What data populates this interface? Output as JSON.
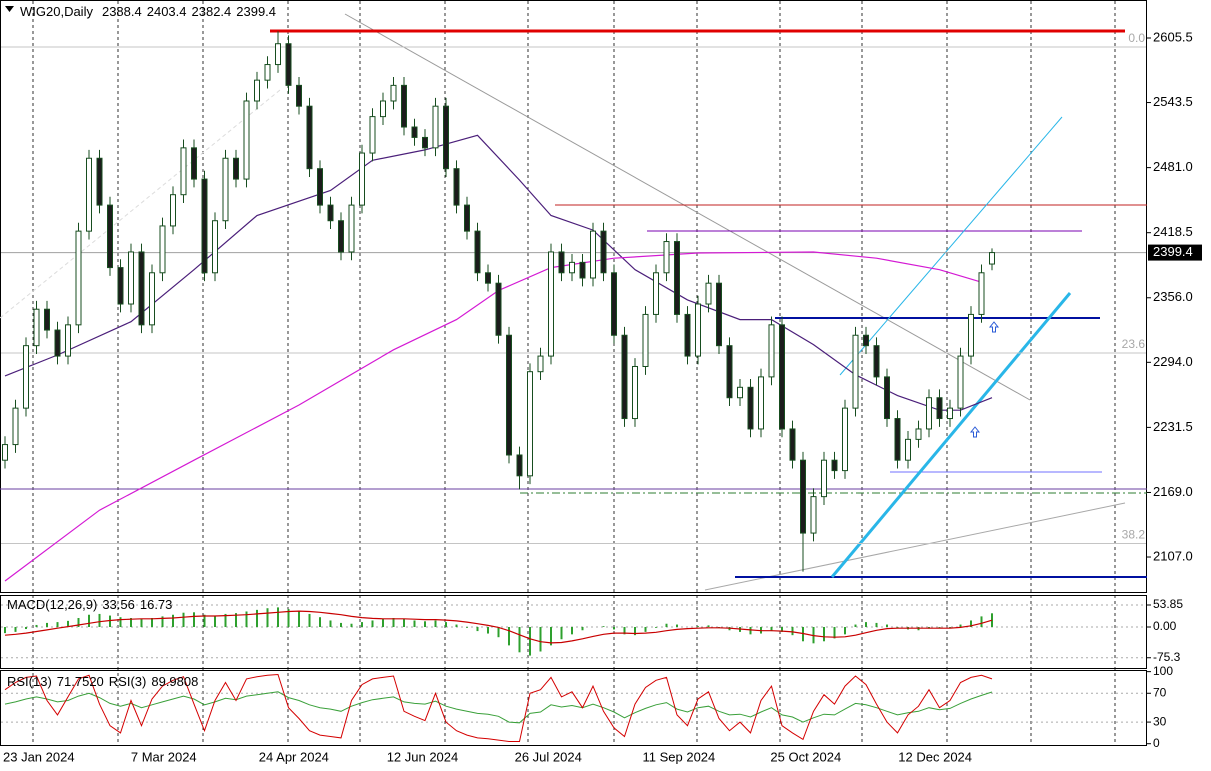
{
  "chart_data": {
    "type": "candlestick",
    "symbol": "WIG20,Daily",
    "color_up": "#ffffff",
    "color_down": "#1c1c1c",
    "wick_color": "#174d1f",
    "open": [
      2200,
      2215,
      2250,
      2310,
      2345,
      2325,
      2300,
      2330,
      2420,
      2490,
      2445,
      2385,
      2350,
      2400,
      2330,
      2380,
      2425,
      2455,
      2500,
      2470,
      2380,
      2430,
      2490,
      2470,
      2545,
      2565,
      2580,
      2600,
      2560,
      2540,
      2480,
      2445,
      2430,
      2400,
      2445,
      2495,
      2530,
      2545,
      2560,
      2520,
      2510,
      2500,
      2540,
      2480,
      2445,
      2420,
      2380,
      2370,
      2320,
      2205,
      2185,
      2285,
      2300,
      2400,
      2380,
      2390,
      2375,
      2420,
      2380,
      2320,
      2240,
      2290,
      2340,
      2380,
      2410,
      2340,
      2300,
      2350,
      2370,
      2310,
      2260,
      2270,
      2230,
      2280,
      2330,
      2230,
      2200,
      2130,
      2165,
      2200,
      2190,
      2250,
      2320,
      2310,
      2280,
      2240,
      2200,
      2220,
      2230,
      2260,
      2240,
      2250,
      2300,
      2340,
      2388.4
    ],
    "high": [
      2223,
      2258,
      2318,
      2353,
      2353,
      2333,
      2338,
      2428,
      2498,
      2498,
      2453,
      2393,
      2408,
      2408,
      2388,
      2433,
      2463,
      2508,
      2508,
      2478,
      2438,
      2498,
      2498,
      2553,
      2573,
      2588,
      2612,
      2608,
      2568,
      2548,
      2488,
      2453,
      2438,
      2453,
      2503,
      2538,
      2553,
      2568,
      2568,
      2528,
      2518,
      2548,
      2548,
      2488,
      2453,
      2428,
      2388,
      2378,
      2328,
      2213,
      2293,
      2308,
      2408,
      2408,
      2398,
      2398,
      2428,
      2428,
      2388,
      2328,
      2298,
      2348,
      2388,
      2418,
      2418,
      2348,
      2358,
      2378,
      2378,
      2318,
      2278,
      2278,
      2288,
      2338,
      2338,
      2238,
      2208,
      2173,
      2208,
      2208,
      2258,
      2328,
      2328,
      2318,
      2288,
      2248,
      2228,
      2238,
      2268,
      2268,
      2258,
      2308,
      2348,
      2388,
      2403.4
    ],
    "low": [
      2192,
      2207,
      2242,
      2302,
      2317,
      2292,
      2292,
      2322,
      2412,
      2437,
      2377,
      2342,
      2342,
      2322,
      2322,
      2372,
      2417,
      2447,
      2462,
      2372,
      2372,
      2422,
      2462,
      2462,
      2537,
      2557,
      2572,
      2552,
      2532,
      2472,
      2437,
      2422,
      2392,
      2392,
      2437,
      2487,
      2522,
      2537,
      2512,
      2502,
      2492,
      2492,
      2472,
      2437,
      2412,
      2372,
      2362,
      2312,
      2197,
      2172,
      2177,
      2277,
      2292,
      2372,
      2372,
      2367,
      2367,
      2372,
      2312,
      2232,
      2232,
      2282,
      2332,
      2372,
      2332,
      2292,
      2292,
      2342,
      2302,
      2252,
      2252,
      2222,
      2222,
      2272,
      2222,
      2192,
      2093,
      2122,
      2157,
      2182,
      2182,
      2242,
      2302,
      2272,
      2232,
      2192,
      2192,
      2212,
      2222,
      2232,
      2232,
      2242,
      2292,
      2332,
      2382.4
    ],
    "close": [
      2215,
      2250,
      2310,
      2345,
      2325,
      2300,
      2330,
      2420,
      2490,
      2445,
      2385,
      2350,
      2400,
      2330,
      2380,
      2425,
      2455,
      2500,
      2470,
      2380,
      2430,
      2490,
      2470,
      2545,
      2565,
      2580,
      2600,
      2560,
      2540,
      2480,
      2445,
      2430,
      2400,
      2445,
      2495,
      2530,
      2545,
      2560,
      2520,
      2510,
      2500,
      2540,
      2480,
      2445,
      2420,
      2380,
      2370,
      2320,
      2205,
      2185,
      2285,
      2300,
      2400,
      2380,
      2390,
      2375,
      2420,
      2380,
      2320,
      2240,
      2290,
      2340,
      2380,
      2410,
      2340,
      2300,
      2350,
      2370,
      2310,
      2260,
      2270,
      2230,
      2280,
      2330,
      2230,
      2200,
      2130,
      2165,
      2200,
      2190,
      2250,
      2320,
      2310,
      2280,
      2240,
      2200,
      2220,
      2230,
      2260,
      2240,
      2250,
      2300,
      2340,
      2380,
      2399.4
    ],
    "ylim": [
      2073.4,
      2642.0
    ],
    "yticks": [
      2605.5,
      2543.5,
      {
        "value": 2481,
        "label": "2481.0"
      },
      2418.5,
      {
        "value": 2356,
        "label": "2356.0"
      },
      {
        "value": 2294,
        "label": "2294.0"
      },
      2231.5,
      {
        "value": 2169,
        "label": "2169.0"
      },
      {
        "value": 2107,
        "label": "2107.0"
      }
    ],
    "x_labels": [
      "23 Jan 2024",
      "7 Mar 2024",
      "24 Apr 2024",
      "12 Jun 2024",
      "26 Jul 2024",
      "11 Sep 2024",
      "25 Oct 2024",
      "12 Dec 2024"
    ],
    "moving_averages": [
      {
        "color": "#4b1f7a",
        "x": [
          0,
          5,
          12,
          18,
          24,
          31,
          35,
          40,
          45,
          49,
          52,
          56,
          60,
          65,
          70,
          73,
          77,
          81,
          85,
          89,
          91,
          94
        ],
        "values": [
          2281,
          2301,
          2333,
          2383,
          2435,
          2459,
          2488,
          2498,
          2512,
          2469,
          2435,
          2421,
          2383,
          2354,
          2335,
          2335,
          2311,
          2282,
          2262,
          2248,
          2248,
          2260
        ]
      },
      {
        "color": "#d41ad4",
        "x": [
          0,
          9,
          18,
          28,
          37,
          43,
          47,
          52,
          58,
          66,
          77,
          83,
          89,
          93
        ],
        "values": [
          2084,
          2152,
          2200,
          2253,
          2306,
          2335,
          2363,
          2385,
          2394,
          2399,
          2400,
          2394,
          2383,
          2371
        ]
      }
    ],
    "fibo": [
      {
        "value": 0,
        "label": "0.0",
        "price": 2596.9
      },
      {
        "value": 23.6,
        "label": "23.6",
        "price": 2303
      },
      {
        "value": 38.2,
        "label": "38.2",
        "price": 2120
      }
    ],
    "panels": [
      {
        "type": "macd",
        "title": "MACD(12,26,9)",
        "hist_color": "#2ea02e",
        "signal_color": "#c80000",
        "histogram": [
          -15,
          -12,
          -5,
          5,
          10,
          12,
          15,
          22,
          30,
          32,
          28,
          24,
          22,
          20,
          22,
          26,
          30,
          35,
          36,
          30,
          28,
          32,
          34,
          38,
          42,
          46,
          48,
          44,
          40,
          32,
          24,
          16,
          10,
          8,
          12,
          16,
          20,
          22,
          20,
          16,
          14,
          16,
          12,
          6,
          -2,
          -10,
          -16,
          -25,
          -45,
          -62,
          -70,
          -60,
          -45,
          -30,
          -18,
          -8,
          0,
          2,
          -6,
          -18,
          -20,
          -12,
          -2,
          8,
          6,
          0,
          2,
          4,
          -2,
          -8,
          -12,
          -18,
          -16,
          -10,
          -12,
          -20,
          -35,
          -40,
          -35,
          -28,
          -18,
          6,
          12,
          10,
          6,
          -2,
          -6,
          -8,
          -4,
          -2,
          -2,
          6,
          16,
          26,
          33.56
        ],
        "signal": [
          -20,
          -18,
          -15,
          -11,
          -7,
          -3,
          1,
          5,
          9,
          13,
          16,
          18,
          19,
          20,
          20,
          21,
          22,
          24,
          26,
          27,
          27,
          28,
          29,
          30,
          32,
          34,
          36,
          38,
          39,
          38,
          36,
          33,
          30,
          26,
          23,
          21,
          20,
          20,
          20,
          19,
          18,
          18,
          17,
          15,
          12,
          8,
          4,
          -1,
          -9,
          -19,
          -29,
          -36,
          -39,
          -38,
          -34,
          -29,
          -23,
          -18,
          -15,
          -15,
          -16,
          -15,
          -13,
          -9,
          -6,
          -4,
          -3,
          -2,
          -2,
          -3,
          -5,
          -7,
          -9,
          -9,
          -10,
          -12,
          -16,
          -21,
          -24,
          -25,
          -24,
          -20,
          -14,
          -8,
          -4,
          -3,
          -3,
          -3,
          -3,
          -3,
          -3,
          -1,
          3,
          9,
          16.73
        ],
        "ylim": [
          -100.4,
          75.9
        ],
        "yticks": [
          53.85,
          {
            "value": 0,
            "label": "0.00"
          },
          -75.3
        ]
      },
      {
        "type": "rsi",
        "series": [
          {
            "name": "RSI(13)",
            "readout": "71.7520",
            "color": "#3aa03a",
            "values": [
              55,
              58,
              62,
              65,
              62,
              58,
              60,
              66,
              70,
              64,
              56,
              52,
              56,
              50,
              54,
              58,
              62,
              66,
              62,
              54,
              58,
              63,
              61,
              66,
              68,
              70,
              72,
              64,
              60,
              54,
              50,
              48,
              45,
              52,
              57,
              61,
              63,
              65,
              58,
              56,
              55,
              59,
              52,
              48,
              45,
              42,
              41,
              38,
              30,
              29,
              42,
              44,
              54,
              51,
              53,
              50,
              55,
              50,
              44,
              36,
              43,
              49,
              54,
              57,
              48,
              44,
              50,
              52,
              45,
              40,
              41,
              37,
              44,
              50,
              40,
              37,
              30,
              36,
              41,
              40,
              48,
              56,
              54,
              50,
              45,
              40,
              43,
              45,
              50,
              47,
              49,
              56,
              62,
              67,
              71.752
            ]
          },
          {
            "name": "RSI(3)",
            "color": "#d40000",
            "values": [
              75,
              85,
              92,
              94,
              60,
              40,
              65,
              90,
              95,
              55,
              25,
              15,
              60,
              25,
              62,
              80,
              88,
              93,
              55,
              18,
              60,
              85,
              60,
              90,
              93,
              95,
              96,
              50,
              35,
              18,
              12,
              10,
              8,
              60,
              82,
              90,
              92,
              94,
              45,
              38,
              32,
              70,
              30,
              18,
              12,
              8,
              7,
              5,
              3,
              3,
              70,
              75,
              92,
              65,
              72,
              50,
              80,
              45,
              22,
              10,
              55,
              78,
              88,
              92,
              40,
              25,
              62,
              72,
              35,
              18,
              30,
              15,
              60,
              80,
              25,
              15,
              6,
              45,
              68,
              55,
              80,
              94,
              82,
              55,
              30,
              15,
              40,
              52,
              75,
              50,
              60,
              85,
              92,
              95,
              89.9808
            ]
          }
        ],
        "ylim": [
          -1.8,
          100.9
        ],
        "yticks": [
          100,
          70,
          30,
          0
        ]
      }
    ]
  }
}
